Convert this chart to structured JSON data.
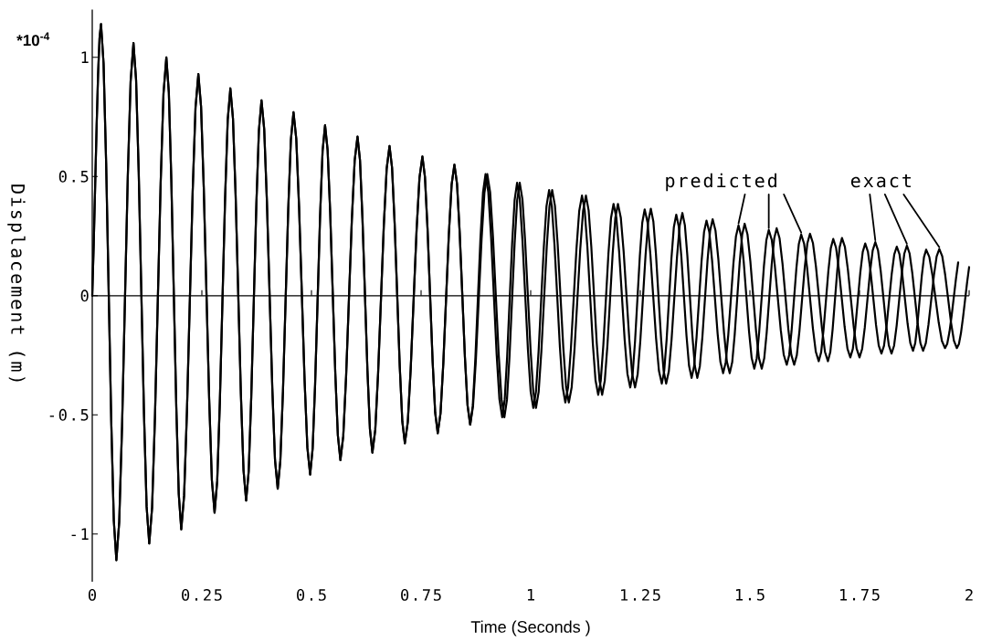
{
  "chart_data": {
    "type": "line",
    "xlabel": "Time (Seconds )",
    "ylabel": "Displacement (m)",
    "annotations": [
      "*10$^{-4}$"
    ],
    "xlim": [
      0,
      2
    ],
    "ylim": [
      -1.2,
      1.2
    ],
    "xticks": [
      0,
      0.25,
      0.5,
      0.75,
      1,
      1.25,
      1.5,
      1.75,
      2
    ],
    "yticks": [
      -1,
      -0.5,
      0,
      0.5,
      1
    ],
    "series": [
      {
        "name": "predicted",
        "color": "#000000",
        "x": [
          0,
          0.02,
          0.055,
          0.094,
          0.13,
          0.169,
          0.203,
          0.242,
          0.279,
          0.315,
          0.351,
          0.386,
          0.423,
          0.459,
          0.497,
          0.531,
          0.566,
          0.605,
          0.639,
          0.678,
          0.713,
          0.753,
          0.788,
          0.826,
          0.862,
          0.897,
          0.935,
          0.969,
          1.006,
          1.042,
          1.079,
          1.117,
          1.154,
          1.189,
          1.227,
          1.26,
          1.299,
          1.332,
          1.367,
          1.401,
          1.439,
          1.474,
          1.51,
          1.543,
          1.584,
          1.617,
          1.657,
          1.69,
          1.729,
          1.763,
          1.8,
          1.835,
          1.872,
          1.902,
          1.945,
          1.975
        ],
        "values": [
          0,
          1.14,
          -1.11,
          1.06,
          -1.04,
          1.0,
          -0.98,
          0.93,
          -0.91,
          0.87,
          -0.86,
          0.82,
          -0.81,
          0.77,
          -0.75,
          0.715,
          -0.69,
          0.667,
          -0.658,
          0.628,
          -0.619,
          0.584,
          -0.577,
          0.55,
          -0.541,
          0.51,
          -0.51,
          0.474,
          -0.471,
          0.443,
          -0.448,
          0.42,
          -0.416,
          0.385,
          -0.385,
          0.362,
          -0.369,
          0.34,
          -0.345,
          0.315,
          -0.325,
          0.295,
          -0.306,
          0.276,
          -0.29,
          0.257,
          -0.275,
          0.238,
          -0.259,
          0.219,
          -0.243,
          0.206,
          -0.231,
          0.193,
          -0.22,
          0.14
        ]
      },
      {
        "name": "exact",
        "color": "#000000",
        "x": [
          0,
          0.02,
          0.055,
          0.094,
          0.13,
          0.169,
          0.203,
          0.242,
          0.279,
          0.315,
          0.351,
          0.386,
          0.423,
          0.459,
          0.497,
          0.531,
          0.566,
          0.605,
          0.639,
          0.678,
          0.713,
          0.753,
          0.788,
          0.826,
          0.862,
          0.901,
          0.94,
          0.975,
          1.012,
          1.049,
          1.087,
          1.126,
          1.163,
          1.199,
          1.238,
          1.274,
          1.309,
          1.346,
          1.38,
          1.415,
          1.454,
          1.488,
          1.527,
          1.561,
          1.601,
          1.637,
          1.678,
          1.71,
          1.75,
          1.786,
          1.823,
          1.858,
          1.895,
          1.932,
          1.972,
          2.0
        ],
        "values": [
          0,
          1.14,
          -1.11,
          1.06,
          -1.04,
          1.0,
          -0.98,
          0.93,
          -0.91,
          0.87,
          -0.86,
          0.82,
          -0.81,
          0.77,
          -0.75,
          0.715,
          -0.69,
          0.667,
          -0.658,
          0.628,
          -0.619,
          0.584,
          -0.577,
          0.55,
          -0.541,
          0.51,
          -0.51,
          0.474,
          -0.471,
          0.443,
          -0.448,
          0.42,
          -0.416,
          0.385,
          -0.385,
          0.365,
          -0.369,
          0.347,
          -0.345,
          0.321,
          -0.325,
          0.302,
          -0.306,
          0.283,
          -0.29,
          0.26,
          -0.275,
          0.242,
          -0.259,
          0.225,
          -0.243,
          0.21,
          -0.231,
          0.196,
          -0.22,
          0.12
        ]
      }
    ]
  }
}
